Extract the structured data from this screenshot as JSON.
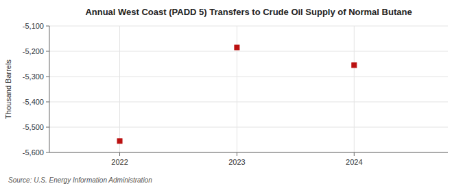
{
  "chart_data": {
    "type": "scatter",
    "title": "Annual West Coast (PADD 5) Transfers to Crude Oil Supply of Normal Butane",
    "ylabel": "Thousand Barrels",
    "source": "Source: U.S. Energy Information Administration",
    "x": [
      2022,
      2023,
      2024
    ],
    "values": [
      -5555,
      -5185,
      -5255
    ],
    "color": "#bb1111",
    "marker": "square",
    "xlim": [
      2021.4,
      2024.8
    ],
    "xticks": [
      2022,
      2023,
      2024
    ],
    "ylim": [
      -5600,
      -5100
    ],
    "yticks": [
      {
        "value": -5100,
        "label": "-5,100"
      },
      {
        "value": -5200,
        "label": "-5,200"
      },
      {
        "value": -5300,
        "label": "-5,300"
      },
      {
        "value": -5400,
        "label": "-5,400"
      },
      {
        "value": -5500,
        "label": "-5,500"
      },
      {
        "value": -5600,
        "label": "-5,600"
      }
    ],
    "grid": true
  }
}
